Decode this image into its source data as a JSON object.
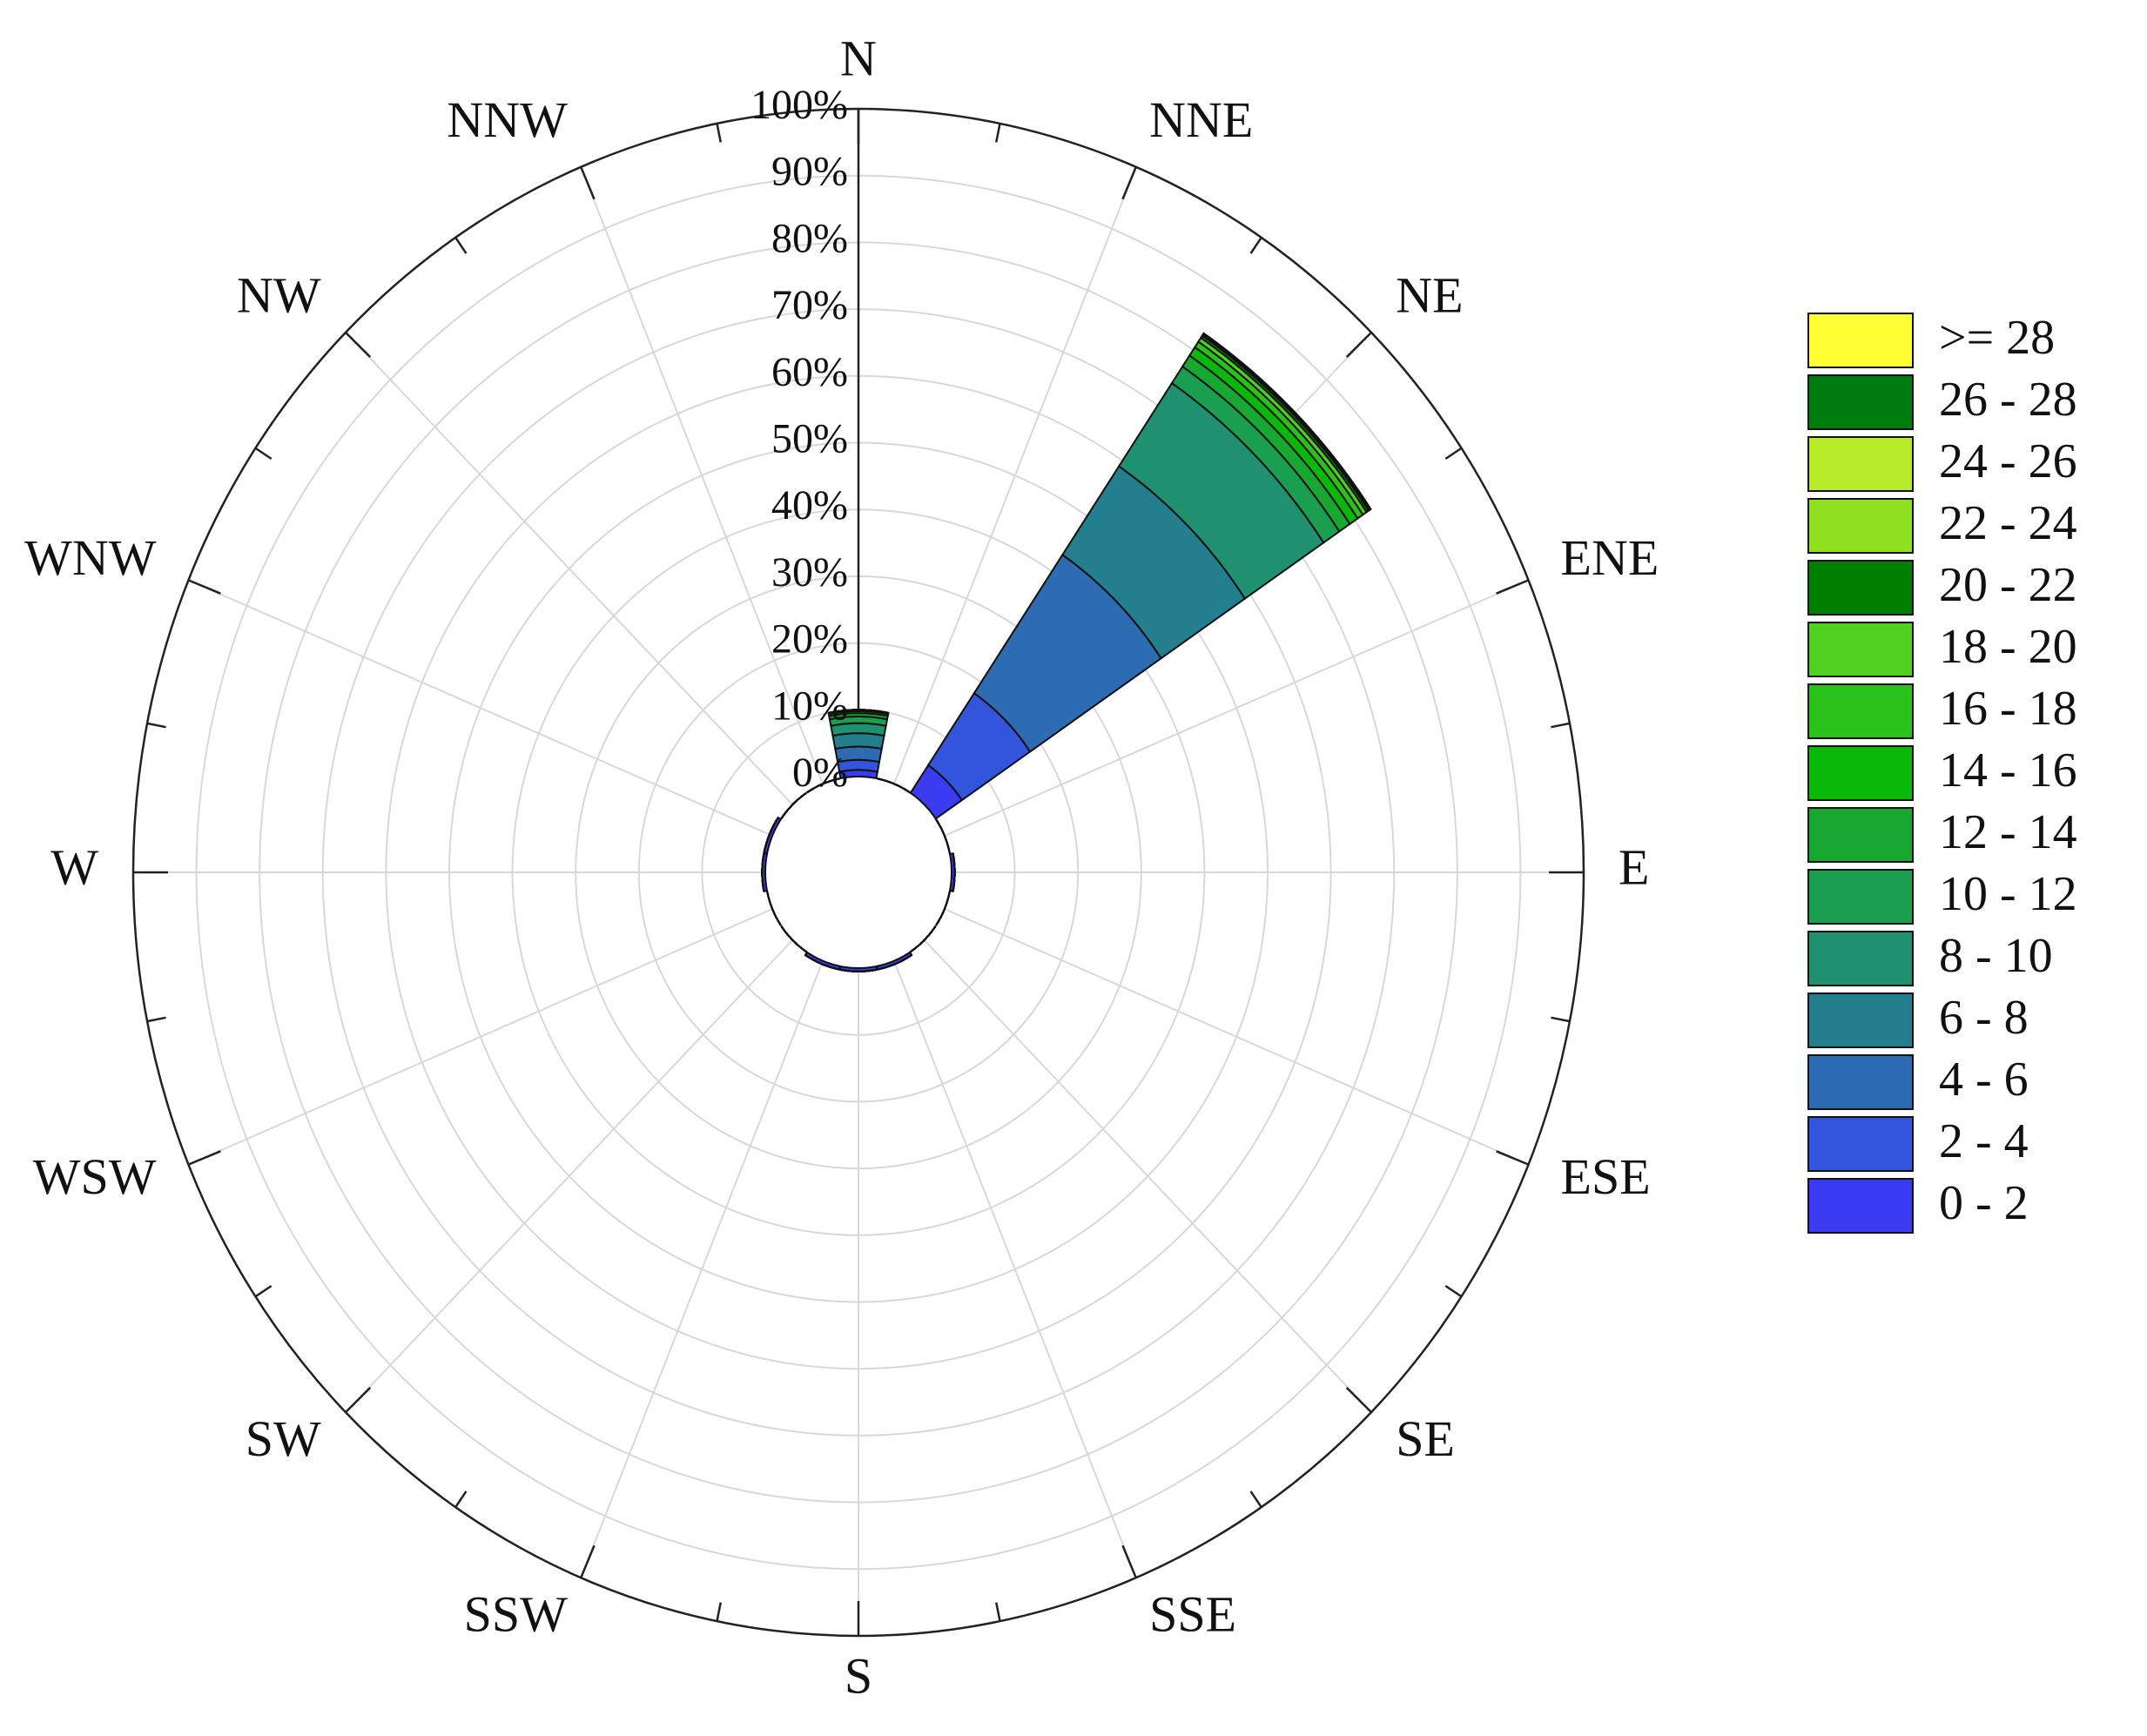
{
  "chart_data": {
    "type": "windrose",
    "categories": [
      "N",
      "NNE",
      "NE",
      "ENE",
      "E",
      "ESE",
      "SE",
      "SSE",
      "S",
      "SSW",
      "SW",
      "WSW",
      "W",
      "WNW",
      "NW",
      "NNW"
    ],
    "ylim": [
      0,
      100
    ],
    "yticks": [
      {
        "value": 0,
        "label": "0%"
      },
      {
        "value": 10,
        "label": "10%"
      },
      {
        "value": 20,
        "label": "20%"
      },
      {
        "value": 30,
        "label": "30%"
      },
      {
        "value": 40,
        "label": "40%"
      },
      {
        "value": 50,
        "label": "50%"
      },
      {
        "value": 60,
        "label": "60%"
      },
      {
        "value": 70,
        "label": "70%"
      },
      {
        "value": 80,
        "label": "80%"
      },
      {
        "value": 90,
        "label": "90%"
      },
      {
        "value": 100,
        "label": "100%"
      }
    ],
    "grid": true,
    "legend": "right",
    "series": [
      {
        "name": "0 - 2",
        "color": "#3b3bf2",
        "values": [
          1,
          0,
          5,
          0,
          0.5,
          0,
          0,
          0.5,
          0.5,
          0.5,
          0,
          0,
          0.5,
          0.5,
          0,
          0
        ]
      },
      {
        "name": "2 - 4",
        "color": "#3355dc",
        "values": [
          1.5,
          0,
          13,
          0,
          0,
          0,
          0,
          0,
          0,
          0,
          0,
          0,
          0,
          0,
          0,
          0
        ]
      },
      {
        "name": "4 - 6",
        "color": "#2d6cb2",
        "values": [
          2,
          0,
          25,
          0,
          0,
          0,
          0,
          0,
          0,
          0,
          0,
          0,
          0,
          0,
          0,
          0
        ]
      },
      {
        "name": "6 - 8",
        "color": "#237f8e",
        "values": [
          2,
          0,
          16,
          0,
          0,
          0,
          0,
          0,
          0,
          0,
          0,
          0,
          0,
          0,
          0,
          0
        ]
      },
      {
        "name": "8 - 10",
        "color": "#1f9070",
        "values": [
          1.5,
          0,
          15,
          0,
          0,
          0,
          0,
          0,
          0,
          0,
          0,
          0,
          0,
          0,
          0,
          0
        ]
      },
      {
        "name": "10 - 12",
        "color": "#1a9e50",
        "values": [
          1,
          0,
          3,
          0,
          0,
          0,
          0,
          0,
          0,
          0,
          0,
          0,
          0,
          0,
          0,
          0
        ]
      },
      {
        "name": "12 - 14",
        "color": "#18a832",
        "values": [
          0.5,
          0,
          2,
          0,
          0,
          0,
          0,
          0,
          0,
          0,
          0,
          0,
          0,
          0,
          0,
          0
        ]
      },
      {
        "name": "14 - 16",
        "color": "#0ab80a",
        "values": [
          0.3,
          0,
          1.5,
          0,
          0,
          0,
          0,
          0,
          0,
          0,
          0,
          0,
          0,
          0,
          0,
          0
        ]
      },
      {
        "name": "16 - 18",
        "color": "#2ac21a",
        "values": [
          0.2,
          0,
          1,
          0,
          0,
          0,
          0,
          0,
          0,
          0,
          0,
          0,
          0,
          0,
          0,
          0
        ]
      },
      {
        "name": "18 - 20",
        "color": "#50d020",
        "values": [
          0,
          0,
          0.7,
          0,
          0,
          0,
          0,
          0,
          0,
          0,
          0,
          0,
          0,
          0,
          0,
          0
        ]
      },
      {
        "name": "20 - 22",
        "color": "#008000",
        "values": [
          0,
          0,
          0.4,
          0,
          0,
          0,
          0,
          0,
          0,
          0,
          0,
          0,
          0,
          0,
          0,
          0
        ]
      },
      {
        "name": "22 - 24",
        "color": "#90e020",
        "values": [
          0,
          0,
          0.2,
          0,
          0,
          0,
          0,
          0,
          0,
          0,
          0,
          0,
          0,
          0,
          0,
          0
        ]
      },
      {
        "name": "24 - 26",
        "color": "#b8ec28",
        "values": [
          0,
          0,
          0.1,
          0,
          0,
          0,
          0,
          0,
          0,
          0,
          0,
          0,
          0,
          0,
          0,
          0
        ]
      },
      {
        "name": "26 - 28",
        "color": "#007d10",
        "values": [
          0,
          0,
          0.1,
          0,
          0,
          0,
          0,
          0,
          0,
          0,
          0,
          0,
          0,
          0,
          0,
          0
        ]
      },
      {
        "name": ">= 28",
        "color": "#ffff33",
        "values": [
          0,
          0,
          0,
          0,
          0,
          0,
          0,
          0,
          0,
          0,
          0,
          0,
          0,
          0,
          0,
          0
        ]
      }
    ]
  }
}
